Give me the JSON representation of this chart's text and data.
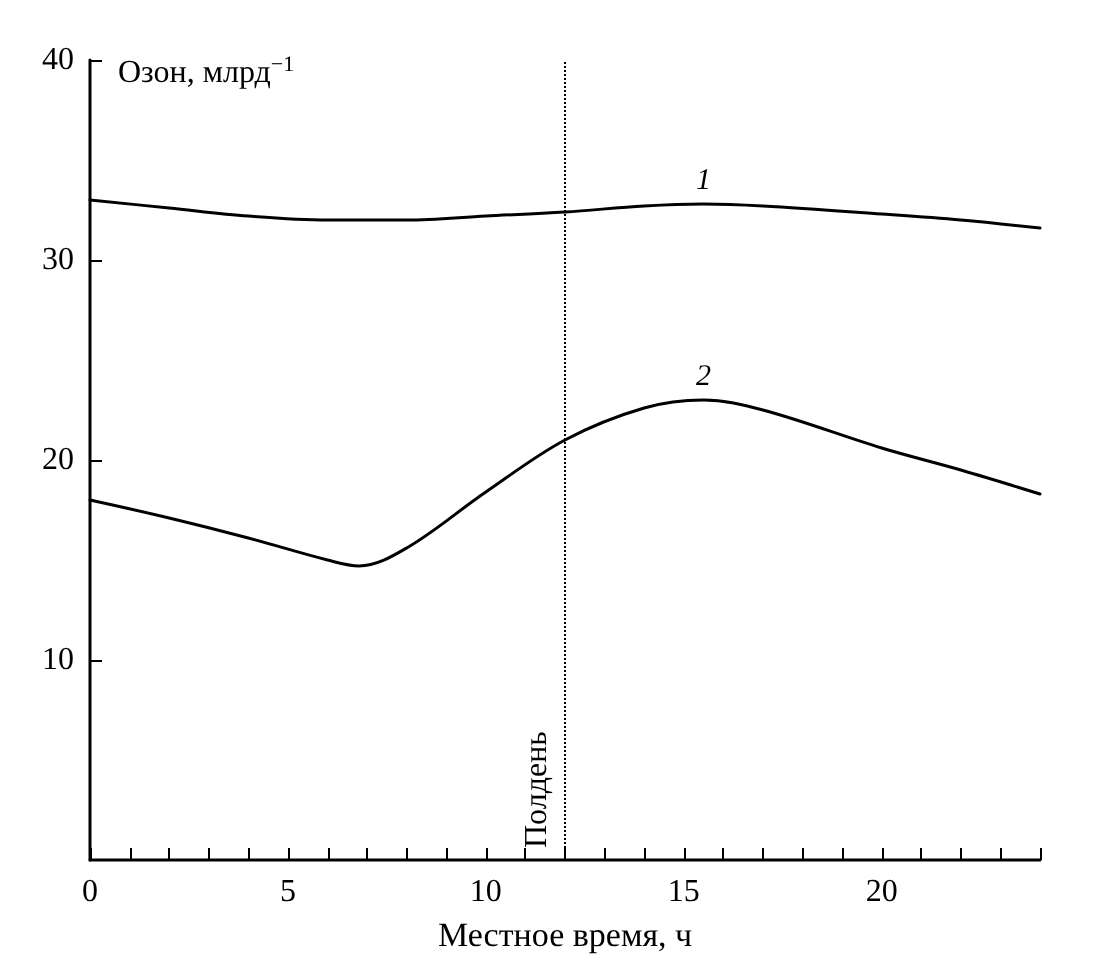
{
  "chart_data": {
    "type": "line",
    "xlabel": "Местное время, ч",
    "ylabel": "Озон, млрд$^{−1}$",
    "xlim": [
      0,
      24
    ],
    "ylim": [
      0,
      40
    ],
    "xticks": [
      0,
      {
        "value": 1,
        "label": null
      },
      {
        "value": 2,
        "label": null
      },
      {
        "value": 3,
        "label": null
      },
      {
        "value": 4,
        "label": null
      },
      5,
      {
        "value": 6,
        "label": null
      },
      {
        "value": 7,
        "label": null
      },
      {
        "value": 8,
        "label": null
      },
      {
        "value": 9,
        "label": null
      },
      10,
      {
        "value": 11,
        "label": null
      },
      {
        "value": 12,
        "label": null
      },
      {
        "value": 13,
        "label": null
      },
      {
        "value": 14,
        "label": null
      },
      15,
      {
        "value": 16,
        "label": null
      },
      {
        "value": 17,
        "label": null
      },
      {
        "value": 18,
        "label": null
      },
      {
        "value": 19,
        "label": null
      },
      20,
      {
        "value": 21,
        "label": null
      },
      {
        "value": 22,
        "label": null
      },
      {
        "value": 23,
        "label": null
      },
      {
        "value": 24,
        "label": null
      }
    ],
    "yticks": [
      10,
      20,
      30,
      40
    ],
    "grid": false,
    "legend": false,
    "marker": "none",
    "line_style": "solid",
    "series": [
      {
        "name": "1",
        "color": "#000000",
        "x": [
          0,
          2,
          4,
          6,
          8,
          10,
          12,
          14,
          15.5,
          17,
          20,
          22,
          24
        ],
        "values": [
          33,
          32.6,
          32.2,
          32,
          32,
          32.2,
          32.4,
          32.7,
          32.8,
          32.7,
          32.3,
          32,
          31.6
        ]
      },
      {
        "name": "2",
        "color": "#000000",
        "x": [
          0,
          2,
          4,
          6,
          6.8,
          8,
          10,
          12,
          14,
          15.5,
          17,
          20,
          22,
          24
        ],
        "values": [
          18,
          17.1,
          16.1,
          15,
          14.7,
          15.6,
          18.4,
          21,
          22.6,
          23,
          22.5,
          20.6,
          19.5,
          18.3
        ]
      }
    ],
    "ref_lines": [
      {
        "axis": "x",
        "value": 12,
        "label": "Полдень",
        "line_style": "dotted",
        "color": "#000000"
      }
    ]
  }
}
